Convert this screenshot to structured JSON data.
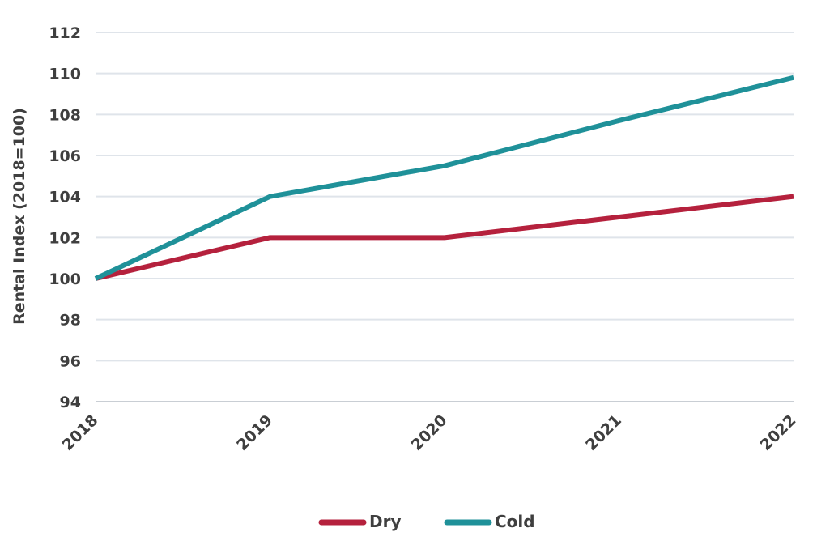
{
  "chart_data": {
    "type": "line",
    "x": [
      "2018",
      "2019",
      "2020",
      "2021",
      "2022"
    ],
    "ylabel": "Rental Index (2018=100)",
    "xlabel": "",
    "ylim": [
      94,
      112
    ],
    "yticks": [
      94,
      96,
      98,
      100,
      102,
      104,
      106,
      108,
      110,
      112
    ],
    "grid": true,
    "legend_position": "bottom",
    "series": [
      {
        "name": "Dry",
        "color": "#b5213d",
        "values": [
          100,
          102,
          102,
          103,
          104
        ]
      },
      {
        "name": "Cold",
        "color": "#1f9199",
        "values": [
          100,
          104,
          105.5,
          107.7,
          109.8
        ]
      }
    ]
  }
}
